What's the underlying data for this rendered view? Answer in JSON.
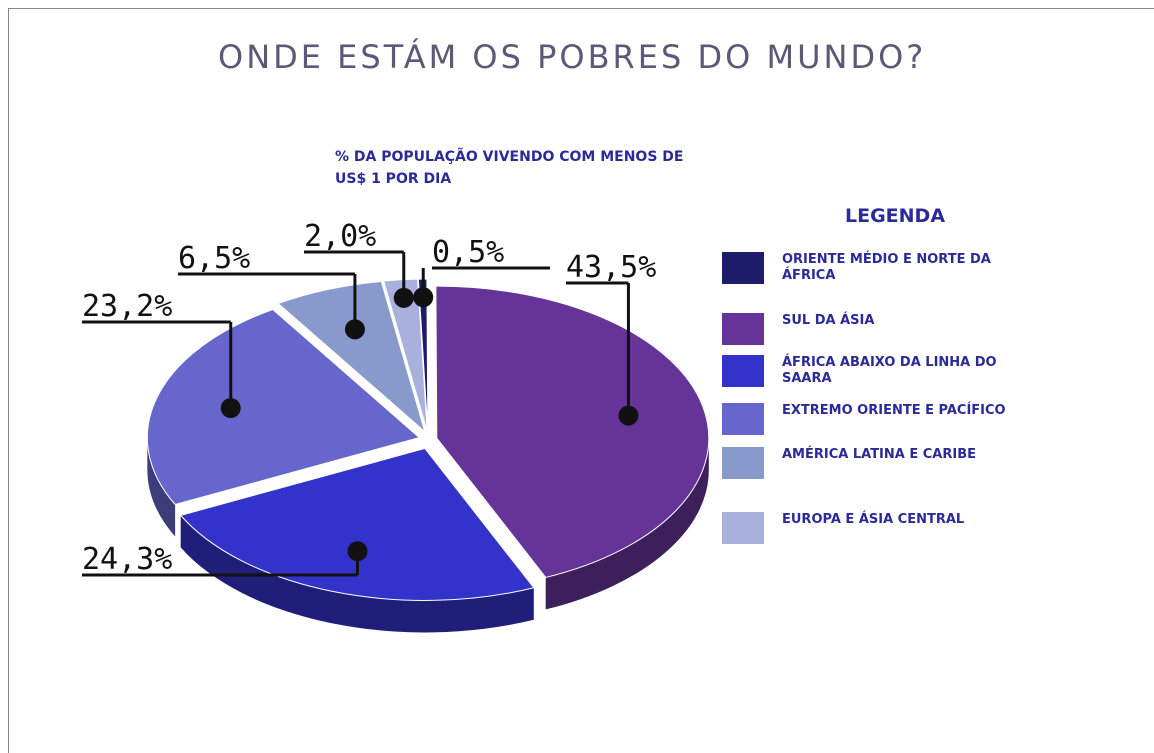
{
  "chart_data": {
    "type": "pie",
    "title": "ONDE ESTÁM OS POBRES DO MUNDO?",
    "subtitle": "% DA POPULAÇÃO VIVENDO COM MENOS DE US$ 1 POR DIA",
    "legend_title": "LEGENDA",
    "categories": [
      "ORIENTE MÉDIO E NORTE DA ÁFRICA",
      "SUL DA ÁSIA",
      "ÁFRICA ABAIXO DA LINHA DO SAARA",
      "EXTREMO ORIENTE E PACÍFICO",
      "AMÉRICA LATINA E CARIBE",
      "EUROPA E ÁSIA CENTRAL"
    ],
    "values": [
      0.5,
      43.5,
      24.3,
      23.2,
      6.5,
      2.0
    ],
    "value_labels": [
      "0,5%",
      "43,5%",
      "24,3%",
      "23,2%",
      "6,5%",
      "2,0%"
    ],
    "colors": [
      "#1c1c6a",
      "#663399",
      "#3333cc",
      "#6666cc",
      "#8899cc",
      "#aab0dd"
    ]
  }
}
